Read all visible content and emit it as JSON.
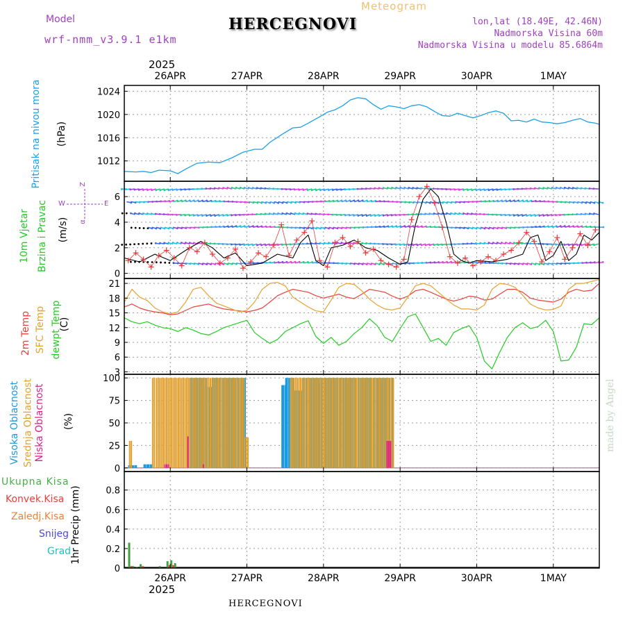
{
  "header": {
    "title": "HERCEGNOVI",
    "meteogram_label": "Meteogram",
    "model_label": "Model",
    "model_name": "wrf-nmm_v3.9.1 e1km",
    "location_lines": [
      "lon,lat (18.49E, 42.46N)",
      "Nadmorska Visina 60m",
      "Nadmorska Visina u modelu 85.6864m"
    ],
    "year_top": "2025",
    "year_bottom": "2025",
    "footer": "HERCEGNOVI",
    "watermark": "made by Angel"
  },
  "colors": {
    "pressure": "#1aa0e8",
    "temp2m": "#e8403a",
    "sfc": "#e8a030",
    "dewpt": "#22cc22",
    "wind_speed": "#000000",
    "gust": "#e83a3a",
    "high_cloud": "#1a9ae0",
    "mid_cloud": "#e0a030",
    "low_cloud": "#e0208a",
    "total_precip": "#44a044",
    "conv_precip": "#e8403a",
    "frozen_precip": "#f08030",
    "snow": "#4a4ae0",
    "hail": "#22c0c0",
    "model_text": "#a040c0"
  },
  "chart_data": [
    {
      "type": "line",
      "panel": "pressure",
      "ylabel_lines": [
        "Pritisak na nivou mora",
        "(hPa)"
      ],
      "ylim": [
        1008.5,
        1025
      ],
      "yticks": [
        1012,
        1016,
        1020,
        1024
      ],
      "xlim": [
        -0.6,
        5.6
      ],
      "x_ticks": [
        0,
        1,
        2,
        3,
        4,
        5
      ],
      "x_tick_labels": [
        "26APR",
        "27APR",
        "28APR",
        "29APR",
        "30APR",
        "1MAY"
      ],
      "grid": true,
      "series": [
        {
          "x": [
            -0.6,
            -0.45,
            -0.35,
            -0.25,
            -0.15,
            0,
            0.1,
            0.2,
            0.35,
            0.5,
            0.65,
            0.8,
            0.95,
            1.1,
            1.2,
            1.3,
            1.45,
            1.6,
            1.7,
            1.8,
            1.95,
            2.05,
            2.15,
            2.25,
            2.35,
            2.45,
            2.55,
            2.65,
            2.75,
            2.85,
            2.95,
            3.05,
            3.15,
            3.25,
            3.35,
            3.45,
            3.55,
            3.65,
            3.75,
            3.85,
            3.95,
            4.05,
            4.15,
            4.25,
            4.35,
            4.45,
            4.55,
            4.65,
            4.75,
            4.85,
            4.95,
            5.05,
            5.15,
            5.25,
            5.35,
            5.45,
            5.55,
            5.6
          ],
          "values": [
            1010.2,
            1010.1,
            1010.2,
            1010.0,
            1010.4,
            1010.3,
            1009.8,
            1010.6,
            1011.6,
            1011.8,
            1011.7,
            1012.5,
            1013.5,
            1014.0,
            1014.0,
            1015.2,
            1016.5,
            1017.7,
            1017.8,
            1018.5,
            1019.6,
            1020.4,
            1020.8,
            1021.5,
            1022.5,
            1022.9,
            1022.7,
            1021.7,
            1020.9,
            1021.5,
            1021.3,
            1021.0,
            1021.5,
            1021.7,
            1021.3,
            1020.5,
            1019.8,
            1019.7,
            1020.2,
            1019.8,
            1019.4,
            1019.8,
            1020.3,
            1020.6,
            1020.2,
            1018.9,
            1019.0,
            1018.7,
            1019.2,
            1018.7,
            1018.6,
            1018.4,
            1018.6,
            1019.0,
            1019.3,
            1018.7,
            1018.5,
            1018.3
          ]
        }
      ]
    },
    {
      "type": "line",
      "panel": "wind",
      "ylabel_lines": [
        "10m Vjetar",
        "Brzina i Pravac",
        "(m/s)"
      ],
      "compass": {
        "n": "Z",
        "w": "W",
        "e": "E",
        "s": "α"
      },
      "ylim": [
        -0.4,
        7.2
      ],
      "yticks": [
        0,
        2,
        4,
        6
      ],
      "xlim": [
        -0.6,
        5.6
      ],
      "grid": true,
      "arrow_rows": [
        0.8,
        2.3,
        3.6,
        4.6,
        5.6,
        6.6
      ],
      "series": [
        {
          "name": "speed",
          "x": [
            -0.6,
            -0.4,
            -0.2,
            0,
            0.2,
            0.4,
            0.55,
            0.7,
            0.85,
            1.0,
            1.2,
            1.4,
            1.6,
            1.7,
            1.8,
            1.9,
            2.0,
            2.1,
            2.25,
            2.4,
            2.55,
            2.7,
            2.85,
            3.0,
            3.1,
            3.2,
            3.3,
            3.4,
            3.5,
            3.6,
            3.7,
            3.8,
            3.9,
            4.0,
            4.2,
            4.4,
            4.6,
            4.7,
            4.8,
            4.9,
            5.0,
            5.1,
            5.2,
            5.3,
            5.4,
            5.5,
            5.6
          ],
          "values": [
            1.2,
            0.9,
            1.5,
            1.0,
            1.8,
            2.5,
            2.0,
            1.2,
            1.6,
            0.6,
            0.8,
            1.5,
            1.2,
            2.4,
            3.0,
            1.0,
            0.6,
            2.0,
            2.2,
            2.6,
            2.0,
            1.8,
            1.2,
            0.7,
            0.9,
            3.8,
            5.8,
            6.6,
            6.0,
            4.0,
            1.5,
            1.0,
            0.8,
            1.0,
            0.9,
            1.1,
            1.5,
            2.8,
            3.0,
            1.0,
            1.4,
            2.5,
            1.0,
            1.5,
            3.0,
            2.6,
            3.2
          ]
        },
        {
          "name": "gust",
          "x": [
            -0.55,
            -0.45,
            -0.35,
            -0.25,
            -0.15,
            -0.05,
            0.05,
            0.15,
            0.25,
            0.35,
            0.45,
            0.55,
            0.65,
            0.75,
            0.85,
            0.95,
            1.05,
            1.15,
            1.25,
            1.35,
            1.45,
            1.55,
            1.65,
            1.75,
            1.85,
            1.95,
            2.05,
            2.15,
            2.25,
            2.35,
            2.45,
            2.55,
            2.65,
            2.75,
            2.85,
            2.95,
            3.05,
            3.15,
            3.25,
            3.35,
            3.45,
            3.55,
            3.65,
            3.75,
            3.85,
            3.95,
            4.05,
            4.15,
            4.25,
            4.35,
            4.45,
            4.55,
            4.65,
            4.75,
            4.85,
            4.95,
            5.05,
            5.15,
            5.25,
            5.35,
            5.45,
            5.55
          ],
          "values": [
            1.0,
            1.6,
            1.1,
            0.5,
            1.4,
            1.8,
            1.2,
            0.6,
            2.0,
            1.7,
            2.4,
            1.5,
            0.8,
            1.2,
            1.9,
            0.4,
            0.9,
            1.6,
            1.3,
            2.2,
            3.8,
            1.4,
            2.6,
            3.2,
            4.1,
            1.0,
            0.5,
            2.4,
            2.8,
            2.1,
            2.5,
            1.6,
            1.9,
            1.0,
            0.7,
            0.5,
            1.1,
            4.2,
            6.0,
            6.8,
            5.5,
            3.6,
            1.3,
            0.8,
            1.2,
            0.6,
            0.9,
            1.3,
            1.0,
            1.5,
            1.8,
            2.4,
            3.2,
            2.5,
            0.9,
            1.7,
            2.8,
            1.1,
            2.0,
            3.1,
            2.2,
            3.4
          ]
        }
      ]
    },
    {
      "type": "line",
      "panel": "temperature",
      "ylabel_lines": [
        "2m Temp",
        "SFC Temp",
        "dewpt Temp",
        "(C)"
      ],
      "ylim": [
        2.5,
        22
      ],
      "yticks": [
        3,
        6,
        9,
        12,
        15,
        18,
        21
      ],
      "xlim": [
        -0.6,
        5.6
      ],
      "grid": true,
      "series": [
        {
          "name": "2m Temp",
          "x": [
            -0.6,
            -0.5,
            -0.4,
            -0.3,
            -0.2,
            -0.1,
            0,
            0.1,
            0.2,
            0.3,
            0.4,
            0.5,
            0.6,
            0.7,
            0.8,
            0.9,
            1.0,
            1.1,
            1.2,
            1.3,
            1.4,
            1.5,
            1.6,
            1.7,
            1.8,
            1.9,
            2.0,
            2.1,
            2.2,
            2.3,
            2.4,
            2.5,
            2.6,
            2.7,
            2.8,
            2.9,
            3.0,
            3.1,
            3.2,
            3.3,
            3.4,
            3.5,
            3.6,
            3.7,
            3.8,
            3.9,
            4.0,
            4.1,
            4.2,
            4.3,
            4.4,
            4.5,
            4.6,
            4.7,
            4.8,
            4.9,
            5.0,
            5.1,
            5.2,
            5.3,
            5.4,
            5.5,
            5.6
          ],
          "values": [
            16.2,
            16.8,
            16.0,
            15.5,
            15.2,
            15.0,
            14.6,
            14.8,
            15.5,
            16.2,
            16.5,
            16.8,
            16.2,
            15.8,
            15.6,
            15.4,
            15.2,
            15.5,
            16.0,
            17.2,
            18.5,
            19.2,
            19.8,
            19.5,
            19.2,
            18.5,
            18.0,
            18.4,
            18.8,
            18.2,
            17.9,
            18.8,
            19.8,
            19.5,
            19.2,
            18.4,
            17.8,
            18.4,
            19.5,
            19.8,
            19.2,
            18.5,
            17.8,
            17.4,
            17.8,
            18.4,
            18.2,
            17.6,
            17.8,
            18.8,
            19.8,
            19.8,
            19.2,
            18.0,
            17.6,
            17.4,
            17.2,
            17.8,
            19.2,
            19.8,
            19.4,
            19.6,
            21.0
          ]
        },
        {
          "name": "SFC Temp",
          "x": [
            -0.6,
            -0.5,
            -0.4,
            -0.3,
            -0.2,
            -0.1,
            0,
            0.1,
            0.2,
            0.3,
            0.4,
            0.5,
            0.6,
            0.7,
            0.8,
            0.9,
            1.0,
            1.1,
            1.2,
            1.3,
            1.4,
            1.5,
            1.6,
            1.7,
            1.8,
            1.9,
            2.0,
            2.1,
            2.2,
            2.3,
            2.4,
            2.5,
            2.6,
            2.7,
            2.8,
            2.9,
            3.0,
            3.1,
            3.2,
            3.3,
            3.4,
            3.5,
            3.6,
            3.7,
            3.8,
            3.9,
            4.0,
            4.1,
            4.2,
            4.3,
            4.4,
            4.5,
            4.6,
            4.7,
            4.8,
            4.9,
            5.0,
            5.1,
            5.2,
            5.3,
            5.4,
            5.5,
            5.6
          ],
          "values": [
            17.2,
            19.8,
            18.2,
            17.5,
            16.0,
            15.2,
            14.8,
            15.2,
            17.2,
            19.8,
            20.2,
            18.5,
            17.0,
            16.4,
            15.8,
            15.2,
            15.5,
            17.2,
            19.8,
            21.0,
            21.2,
            20.5,
            18.2,
            17.2,
            16.2,
            15.4,
            15.2,
            17.6,
            20.2,
            21.0,
            20.8,
            19.5,
            17.8,
            16.6,
            15.8,
            15.6,
            16.0,
            18.2,
            20.5,
            21.0,
            20.5,
            19.2,
            17.8,
            16.6,
            15.8,
            15.8,
            15.6,
            16.6,
            19.8,
            21.0,
            20.8,
            20.2,
            18.6,
            16.8,
            16.0,
            15.6,
            15.7,
            16.4,
            19.8,
            21.0,
            21.0,
            21.4,
            21.8
          ]
        },
        {
          "name": "dewpt Temp",
          "x": [
            -0.6,
            -0.5,
            -0.4,
            -0.3,
            -0.2,
            -0.1,
            0,
            0.1,
            0.2,
            0.3,
            0.4,
            0.5,
            0.6,
            0.7,
            0.8,
            0.9,
            1.0,
            1.1,
            1.2,
            1.3,
            1.4,
            1.5,
            1.6,
            1.7,
            1.8,
            1.9,
            2.0,
            2.1,
            2.2,
            2.3,
            2.4,
            2.5,
            2.6,
            2.7,
            2.8,
            2.9,
            3.0,
            3.1,
            3.2,
            3.3,
            3.4,
            3.5,
            3.6,
            3.7,
            3.8,
            3.9,
            4.0,
            4.1,
            4.2,
            4.3,
            4.4,
            4.5,
            4.6,
            4.7,
            4.8,
            4.9,
            5.0,
            5.1,
            5.2,
            5.3,
            5.4,
            5.5,
            5.6
          ],
          "values": [
            14.0,
            13.2,
            12.8,
            13.2,
            12.5,
            12.0,
            11.8,
            11.2,
            12.0,
            11.5,
            10.8,
            10.5,
            11.2,
            12.0,
            12.5,
            13.0,
            13.5,
            11.0,
            9.8,
            8.8,
            9.6,
            11.2,
            12.0,
            12.8,
            13.4,
            10.2,
            8.8,
            10.0,
            8.4,
            9.2,
            10.8,
            12.0,
            13.8,
            12.4,
            10.0,
            9.2,
            11.8,
            14.2,
            14.8,
            12.0,
            9.2,
            9.8,
            8.4,
            11.0,
            11.8,
            12.4,
            10.0,
            5.2,
            3.6,
            7.0,
            10.0,
            12.0,
            13.0,
            11.8,
            12.2,
            13.5,
            11.2,
            5.2,
            5.4,
            8.0,
            12.8,
            12.6,
            14.0
          ]
        }
      ]
    },
    {
      "type": "bar",
      "panel": "cloud",
      "ylabel_lines": [
        "Visoka Oblacnost",
        "Srednja Oblacnost",
        "Niska Oblacnost",
        "(%)"
      ],
      "ylim": [
        -4,
        104
      ],
      "yticks": [
        0,
        25,
        50,
        75,
        100
      ],
      "xlim": [
        -0.6,
        5.6
      ],
      "grid": true,
      "series": [
        {
          "name": "Visoka Oblacnost",
          "ranges": [
            [
              -0.55,
              -0.45,
              3
            ],
            [
              -0.35,
              -0.25,
              4
            ],
            [
              0.25,
              0.45,
              100
            ],
            [
              0.45,
              0.55,
              90
            ],
            [
              0.55,
              0.95,
              100
            ],
            [
              1.45,
              1.5,
              92
            ],
            [
              1.5,
              1.6,
              100
            ],
            [
              1.6,
              1.72,
              86
            ],
            [
              1.72,
              2.9,
              100
            ]
          ]
        },
        {
          "name": "Srednja Oblacnost",
          "ranges": [
            [
              -0.55,
              -0.52,
              30
            ],
            [
              -0.25,
              -0.22,
              100
            ],
            [
              -0.2,
              0.95,
              100
            ],
            [
              0.95,
              1.0,
              34
            ],
            [
              1.55,
              2.9,
              100
            ]
          ]
        },
        {
          "name": "Niska Oblacnost",
          "ranges": [
            [
              -0.1,
              -0.05,
              4
            ],
            [
              0.2,
              0.22,
              35
            ],
            [
              0.4,
              0.42,
              4
            ],
            [
              2.8,
              2.85,
              30
            ]
          ]
        }
      ]
    },
    {
      "type": "bar",
      "panel": "precip",
      "ylabel_lines": [
        "1hr Precip (mm)"
      ],
      "legend": [
        "Ukupna Kisa",
        "Konvek.Kisa",
        "Zaledj.Kisa",
        "Snijeg",
        "Grad"
      ],
      "ylim": [
        0,
        0.99
      ],
      "yticks": [
        0,
        0.2,
        0.4,
        0.6,
        0.8
      ],
      "ytick_labels": [
        "0",
        "0.2",
        "0.4",
        "0.6",
        "0.8"
      ],
      "xlim": [
        -0.6,
        5.6
      ],
      "x_ticks": [
        0,
        1,
        2,
        3,
        4,
        5
      ],
      "x_tick_labels": [
        "26APR",
        "27APR",
        "28APR",
        "29APR",
        "30APR",
        "1MAY"
      ],
      "grid": true,
      "series": [
        {
          "name": "Ukupna Kisa",
          "x": [
            -0.55,
            -0.5,
            -0.45,
            -0.4,
            -0.15,
            -0.05,
            0.0,
            0.05
          ],
          "values": [
            0.26,
            0.02,
            0.01,
            0.04,
            0.02,
            0.07,
            0.08,
            0.05
          ]
        },
        {
          "name": "Konvek.Kisa",
          "x": [
            -0.54,
            -0.39,
            -0.04,
            0.01
          ],
          "values": [
            0.02,
            0.02,
            0.03,
            0.03
          ]
        }
      ]
    }
  ]
}
